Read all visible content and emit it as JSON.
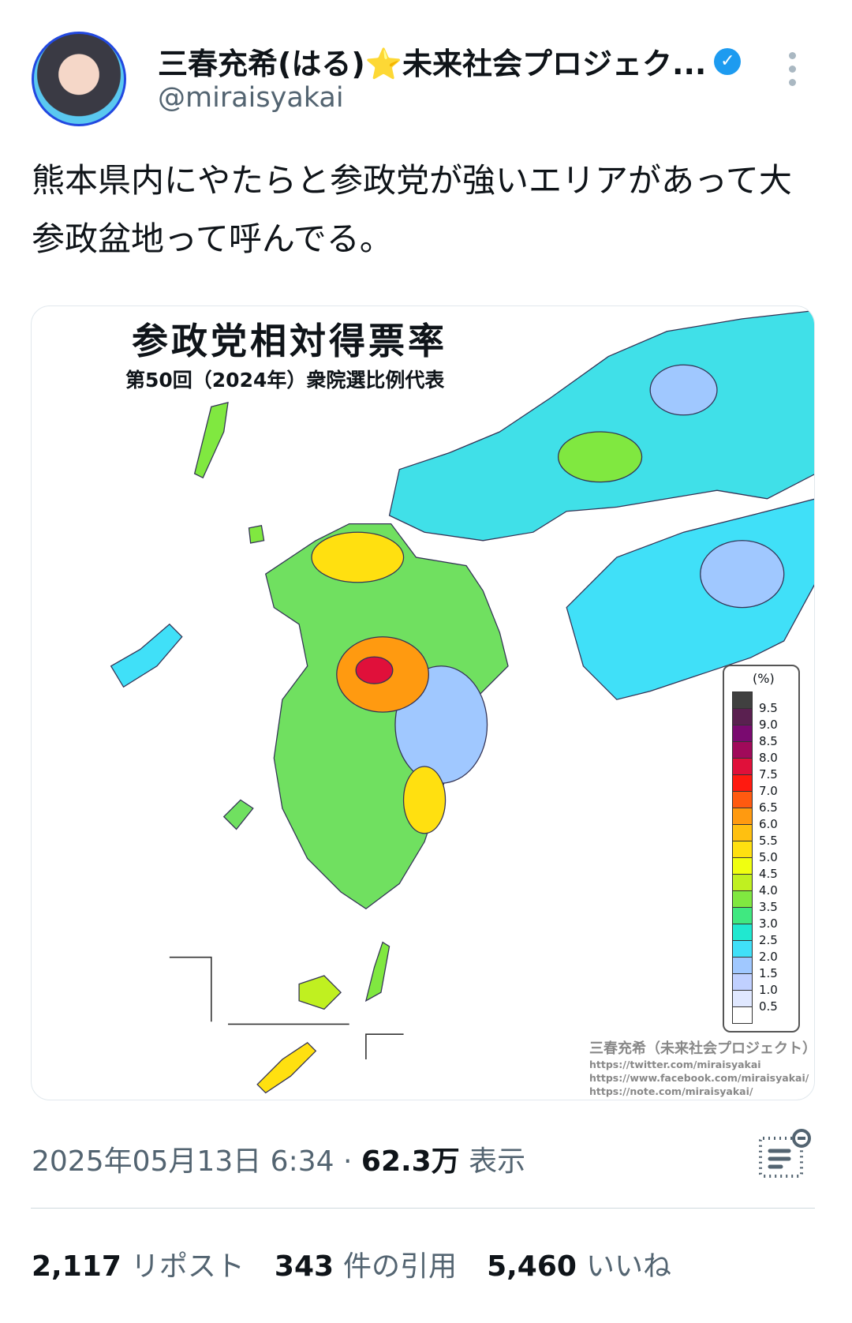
{
  "author": {
    "display_name": "三春充希(はる)⭐未来社会プロジェク...",
    "handle": "@miraisyakai",
    "verified": true,
    "icons": {
      "verified": "verified-badge-icon",
      "more": "more-vertical-icon"
    }
  },
  "tweet": {
    "text": "熊本県内にやたらと参政党が強いエリアがあって大参政盆地って呼んでる。"
  },
  "image": {
    "title": "参政党相対得票率",
    "subtitle": "第50回（2024年）衆院選比例代表",
    "legend": {
      "unit": "(%)",
      "labels": [
        "9.5",
        "9.0",
        "8.5",
        "8.0",
        "7.5",
        "7.0",
        "6.5",
        "6.0",
        "5.5",
        "5.0",
        "4.5",
        "4.0",
        "3.5",
        "3.0",
        "2.5",
        "2.0",
        "1.5",
        "1.0",
        "0.5"
      ],
      "colors": [
        "#404040",
        "#5a2050",
        "#7a0a70",
        "#a00a5a",
        "#e0103a",
        "#ff1a10",
        "#ff5a10",
        "#ff9a10",
        "#ffc010",
        "#ffe010",
        "#f0ff10",
        "#c0f020",
        "#80e840",
        "#40e880",
        "#20e8d0",
        "#40e0f8",
        "#a0c8ff",
        "#c0d0ff",
        "#e0e8ff",
        "#ffffff"
      ]
    },
    "attribution": {
      "name": "三春充希（未来社会プロジェクト）",
      "urls": [
        "https://twitter.com/miraisyakai",
        "https://www.facebook.com/miraisyakai/",
        "https://note.com/miraisyakai/"
      ]
    }
  },
  "meta": {
    "datetime": "2025年05月13日 6:34",
    "separator": "·",
    "views": "62.3万",
    "views_label": "表示",
    "analytics_icon": "analytics-icon"
  },
  "stats": {
    "reposts": "2,117",
    "reposts_label": "リポスト",
    "quotes": "343",
    "quotes_label": "件の引用",
    "likes": "5,460",
    "likes_label": "いいね"
  }
}
